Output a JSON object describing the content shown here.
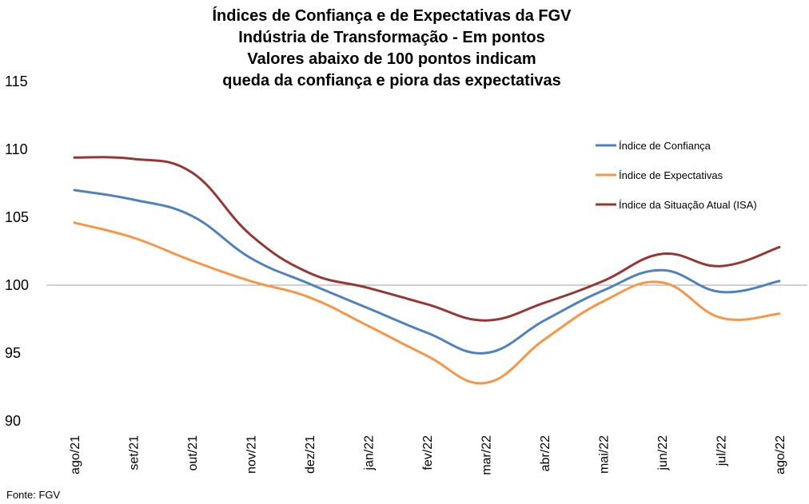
{
  "chart_data": {
    "type": "line",
    "title_lines": [
      "Índices de Confiança e de Expectativas da FGV",
      "Indústria de Transformação - Em pontos",
      "Valores abaixo de 100 pontos indicam",
      "queda da confiança e piora das expectativas"
    ],
    "categories": [
      "ago/21",
      "set/21",
      "out/21",
      "nov/21",
      "dez/21",
      "jan/22",
      "fev/22",
      "mar/22",
      "abr/22",
      "mai/22",
      "jun/22",
      "jul/22",
      "ago/22"
    ],
    "series": [
      {
        "name": "Índice de Confiança",
        "color": "#4F81BD",
        "values": [
          107.0,
          106.3,
          105.1,
          102.0,
          100.1,
          98.3,
          96.5,
          95.0,
          97.4,
          99.6,
          101.1,
          99.5,
          100.3
        ]
      },
      {
        "name": "Índice de Expectativas",
        "color": "#F79646",
        "values": [
          104.6,
          103.5,
          101.8,
          100.3,
          99.1,
          97.0,
          94.8,
          92.8,
          96.0,
          98.8,
          100.2,
          97.6,
          97.9
        ]
      },
      {
        "name": "Índice da Situação Atual (ISA)",
        "color": "#953735",
        "values": [
          109.4,
          109.3,
          108.3,
          103.7,
          100.9,
          99.8,
          98.6,
          97.4,
          98.7,
          100.3,
          102.3,
          101.4,
          102.8
        ]
      }
    ],
    "yticks": [
      "115",
      "110",
      "105",
      "100",
      "95",
      "90"
    ],
    "ylim": [
      90,
      115
    ],
    "reference_line": 100,
    "legend_position": "right",
    "source": "Fonte: FGV"
  }
}
